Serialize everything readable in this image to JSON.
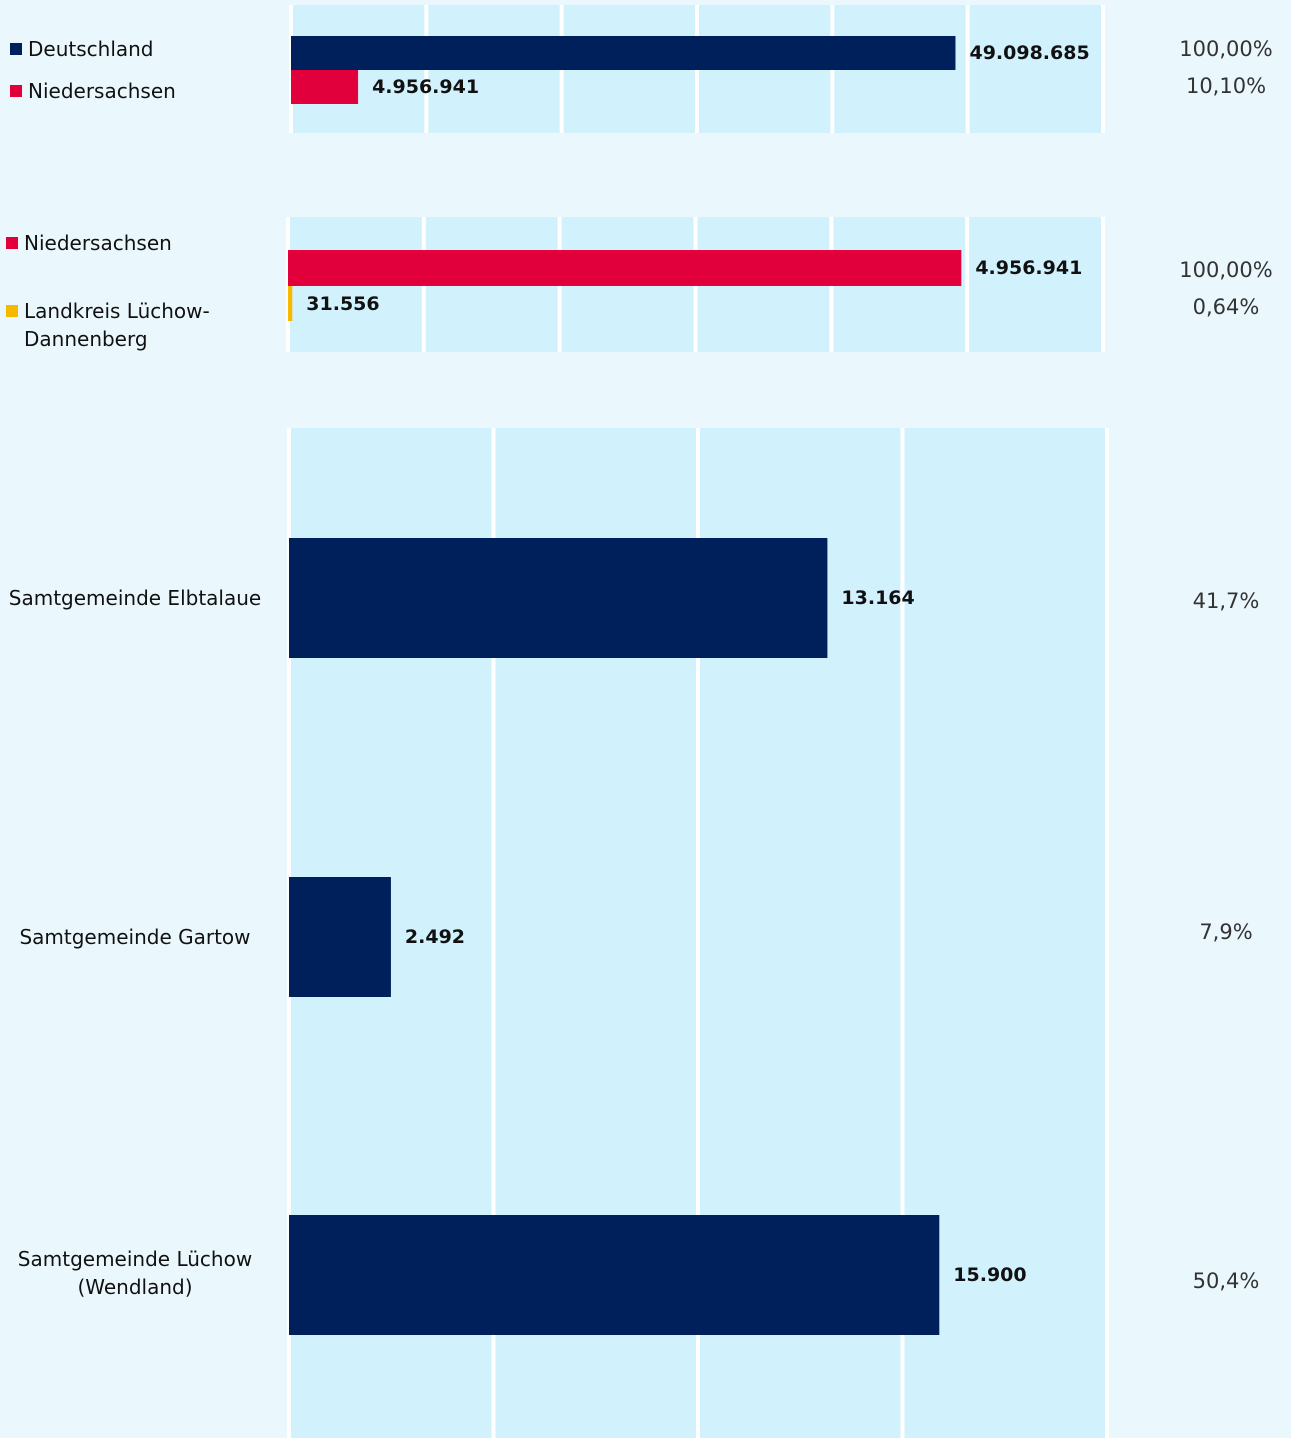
{
  "chart_data": [
    {
      "type": "bar",
      "categories": [
        "Deutschland",
        "Niedersachsen"
      ],
      "values": [
        49098685,
        4956941
      ],
      "value_labels": [
        "49.098.685",
        "4.956.941"
      ],
      "colors": [
        "#00205b",
        "#e2003c"
      ],
      "shares": [
        100,
        10.1
      ],
      "share_labels": [
        "100,00%",
        "10,10%"
      ],
      "xlim": [
        0,
        60000000
      ],
      "xticks": [
        0,
        10000000,
        20000000,
        30000000,
        40000000,
        50000000,
        60000000
      ],
      "grid": true,
      "legend": "left"
    },
    {
      "type": "bar",
      "categories": [
        "Niedersachsen",
        "Landkreis Lüchow-Dannenberg"
      ],
      "values": [
        4956941,
        31556
      ],
      "value_labels": [
        "4.956.941",
        "31.556"
      ],
      "colors": [
        "#e2003c",
        "#f7b800"
      ],
      "shares": [
        100,
        0.64
      ],
      "share_labels": [
        "100,00%",
        "0,64%"
      ],
      "xlim": [
        0,
        6000000
      ],
      "xticks": [
        0,
        1000000,
        2000000,
        3000000,
        4000000,
        5000000,
        6000000
      ],
      "grid": true,
      "legend": "left"
    },
    {
      "type": "bar",
      "categories": [
        "Samtgemeinde Elbtalaue",
        "Samtgemeinde Gartow",
        "Samtgemeinde Lüchow (Wendland)"
      ],
      "values": [
        13164,
        2492,
        15900
      ],
      "value_labels": [
        "13.164",
        "2.492",
        "15.900"
      ],
      "colors": [
        "#00205b",
        "#00205b",
        "#00205b"
      ],
      "shares": [
        41.7,
        7.9,
        50.4
      ],
      "share_labels": [
        "41,7%",
        "7,9%",
        "50,4%"
      ],
      "xlim": [
        0,
        20000
      ],
      "xticks": [
        0,
        5000,
        10000,
        15000,
        20000
      ],
      "grid": true
    }
  ]
}
